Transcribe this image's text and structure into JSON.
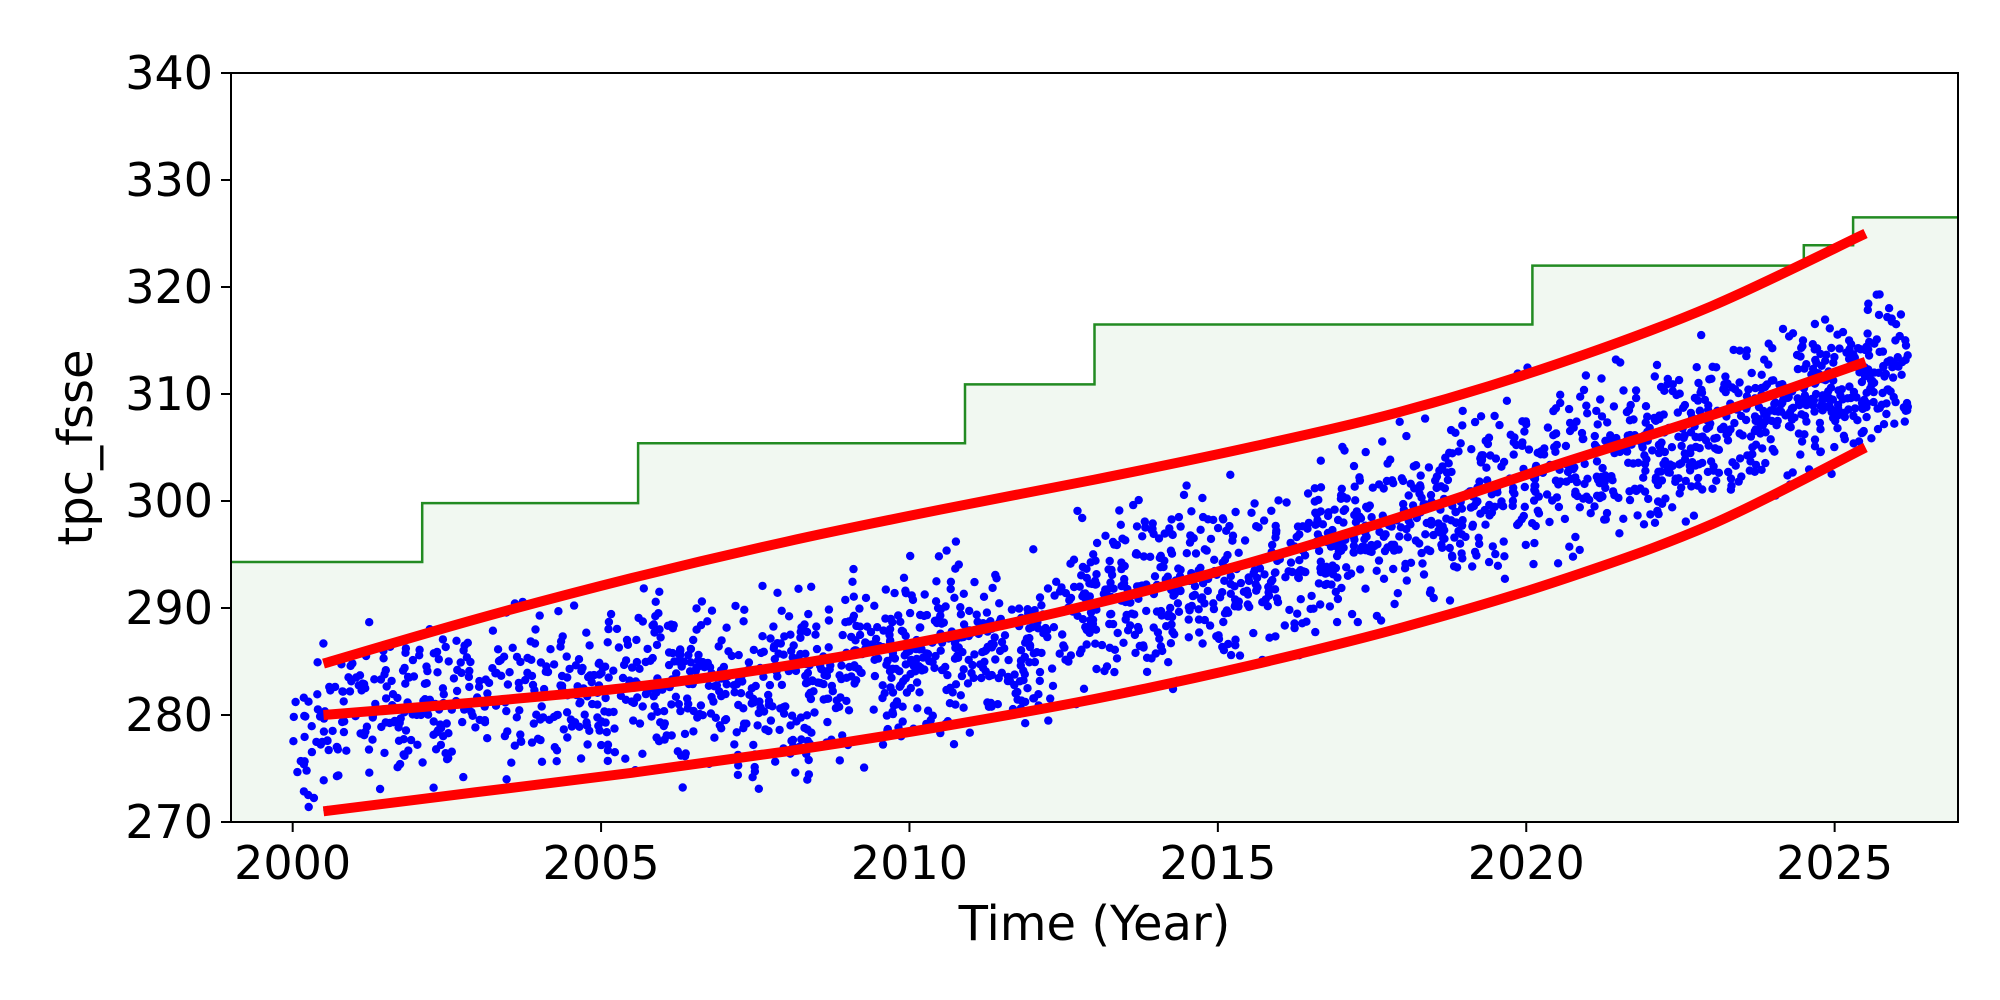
{
  "chart_data": {
    "type": "scatter",
    "title": "",
    "xlabel": "Time (Year)",
    "ylabel": "tpc_fsse",
    "xlim": [
      1999,
      2027
    ],
    "ylim": [
      270,
      340
    ],
    "xticks": [
      2000,
      2005,
      2010,
      2015,
      2020,
      2025
    ],
    "xtick_labels": [
      "2000",
      "2005",
      "2010",
      "2015",
      "2020",
      "2025"
    ],
    "yticks": [
      270,
      280,
      290,
      300,
      310,
      320,
      330,
      340
    ],
    "ytick_labels": [
      "270",
      "280",
      "290",
      "300",
      "310",
      "320",
      "330",
      "340"
    ],
    "grid": false,
    "legend": "none",
    "colors": {
      "points": "#0000ff",
      "trend": "#ff0000",
      "limit_line": "#228b22",
      "limit_fill": "#f1f8f1",
      "frame": "#000000"
    },
    "scatter_anchors": [
      [
        2000.0,
        278
      ],
      [
        2000.5,
        279
      ],
      [
        2001.0,
        280
      ],
      [
        2002.0,
        281
      ],
      [
        2003.0,
        282
      ],
      [
        2004.0,
        283
      ],
      [
        2005.0,
        281
      ],
      [
        2006.0,
        283
      ],
      [
        2007.0,
        282
      ],
      [
        2008.0,
        283
      ],
      [
        2009.0,
        284
      ],
      [
        2010.0,
        286
      ],
      [
        2011.0,
        287
      ],
      [
        2012.0,
        286
      ],
      [
        2013.0,
        291
      ],
      [
        2014.0,
        291
      ],
      [
        2015.0,
        293
      ],
      [
        2016.0,
        293
      ],
      [
        2017.0,
        297
      ],
      [
        2018.0,
        298
      ],
      [
        2019.0,
        299
      ],
      [
        2020.0,
        303
      ],
      [
        2021.0,
        304
      ],
      [
        2022.0,
        305
      ],
      [
        2023.0,
        307
      ],
      [
        2024.0,
        309
      ],
      [
        2025.0,
        311
      ],
      [
        2026.2,
        312
      ]
    ],
    "scatter_spread_anchors": [
      [
        2000.0,
        6
      ],
      [
        2005.0,
        7
      ],
      [
        2010.0,
        7
      ],
      [
        2015.0,
        7
      ],
      [
        2020.0,
        7
      ],
      [
        2026.2,
        6
      ]
    ],
    "series": [
      {
        "kind": "trend",
        "x": [
          2000.5,
          2003,
          2005.5,
          2008,
          2010.5,
          2013,
          2015.5,
          2018,
          2020.5,
          2023,
          2025.5
        ],
        "values": [
          280.0,
          281.2,
          282.6,
          284.6,
          287.2,
          290.4,
          294.2,
          298.6,
          303.4,
          308.0,
          313.0
        ]
      },
      {
        "kind": "upper-bound",
        "x": [
          2000.5,
          2003,
          2005.5,
          2008,
          2010.5,
          2013,
          2015.5,
          2018,
          2020.5,
          2023,
          2025.5
        ],
        "values": [
          284.8,
          289.0,
          292.8,
          296.2,
          299.2,
          302.0,
          305.0,
          308.4,
          312.8,
          318.2,
          325.0
        ]
      },
      {
        "kind": "lower-bound",
        "x": [
          2000.5,
          2003,
          2005.5,
          2008,
          2010.5,
          2013,
          2015.5,
          2018,
          2020.5,
          2023,
          2025.5
        ],
        "values": [
          271.0,
          272.8,
          274.6,
          276.6,
          278.9,
          281.5,
          284.6,
          288.2,
          292.5,
          297.8,
          305.0
        ]
      },
      {
        "kind": "limit-step",
        "x": [
          1999.0,
          2002.1,
          2002.1,
          2005.6,
          2005.6,
          2010.9,
          2010.9,
          2013.0,
          2013.0,
          2020.1,
          2020.1,
          2024.5,
          2024.5,
          2025.3,
          2025.3,
          2027.0
        ],
        "values": [
          294.3,
          294.3,
          299.8,
          299.8,
          305.4,
          305.4,
          310.9,
          310.9,
          316.5,
          316.5,
          322.0,
          322.0,
          323.9,
          323.9,
          326.5,
          326.5
        ]
      }
    ]
  }
}
